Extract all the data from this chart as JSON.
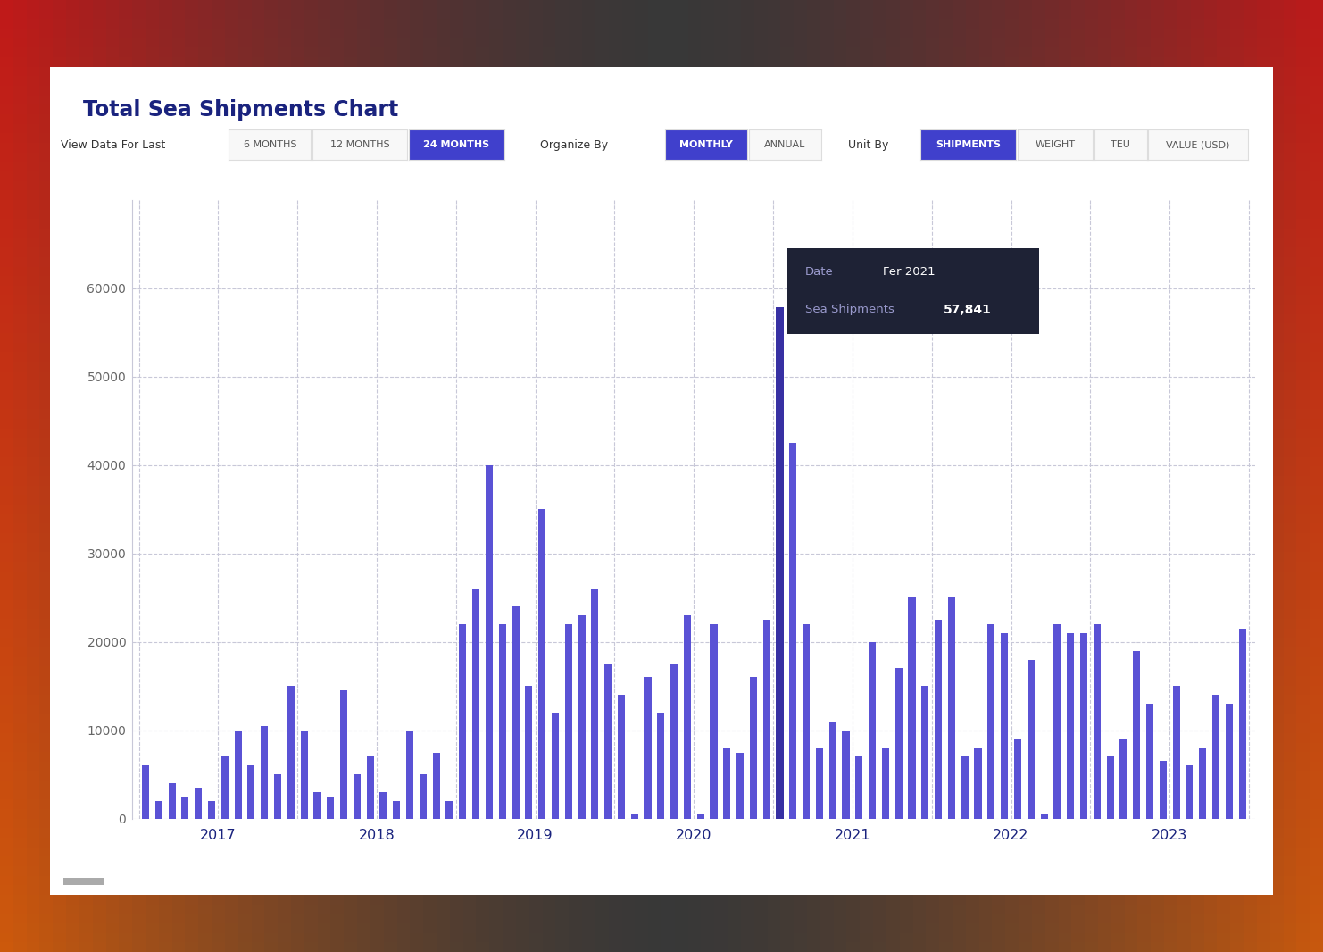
{
  "title": "Total Sea Shipments Chart",
  "background_color": "#ffffff",
  "bar_color": "#5a52d5",
  "bar_highlight_color": "#3730a3",
  "tooltip_bg": "#1e2235",
  "tooltip_date_label": "Date",
  "tooltip_date_value": "Fer 2021",
  "tooltip_shipments_label": "Sea Shipments",
  "tooltip_shipments_value": "57,841",
  "ylim": [
    0,
    70000
  ],
  "yticks": [
    0,
    10000,
    20000,
    30000,
    40000,
    50000,
    60000
  ],
  "grid_color": "#c8c8d8",
  "axis_color": "#1a237e",
  "ytick_color": "#666666",
  "button_active_bg": "#4040cc",
  "button_active_text": "#ffffff",
  "button_inactive_bg": "#f8f8f8",
  "button_inactive_text": "#555555",
  "button_border": "#dddddd",
  "label_color": "#333333",
  "values": [
    6000,
    2000,
    4000,
    2500,
    3500,
    2000,
    7000,
    10000,
    6000,
    10500,
    5000,
    15000,
    10000,
    3000,
    2500,
    14500,
    5000,
    7000,
    3000,
    2000,
    10000,
    5000,
    7500,
    2000,
    22000,
    26000,
    40000,
    22000,
    24000,
    15000,
    35000,
    12000,
    22000,
    23000,
    26000,
    17500,
    14000,
    500,
    16000,
    12000,
    17500,
    23000,
    500,
    22000,
    8000,
    7500,
    16000,
    22500,
    57841,
    42500,
    22000,
    8000,
    11000,
    10000,
    7000,
    20000,
    8000,
    17000,
    25000,
    15000,
    22500,
    25000,
    7000,
    8000,
    22000,
    21000,
    9000,
    18000,
    500,
    22000,
    21000,
    21000,
    22000,
    7000,
    9000,
    19000,
    13000,
    6500,
    15000,
    6000,
    8000,
    14000,
    13000,
    21500
  ],
  "year_labels": [
    "2017",
    "2018",
    "2019",
    "2020",
    "2021",
    "2022",
    "2023"
  ],
  "year_tick_positions": [
    5.5,
    17.5,
    29.5,
    41.5,
    53.5,
    65.5,
    77.5
  ],
  "tooltip_bar_index": 48,
  "outer_bg_left": [
    "#c0392b",
    "#e74c3c",
    "#e67e22",
    "#f39c12",
    "#f1c40f"
  ],
  "outer_bg_right": [
    "#c0392b",
    "#e74c3c",
    "#e67e22",
    "#f39c12",
    "#f1c40f"
  ],
  "outer_bg_dark": "#2c2c2c"
}
